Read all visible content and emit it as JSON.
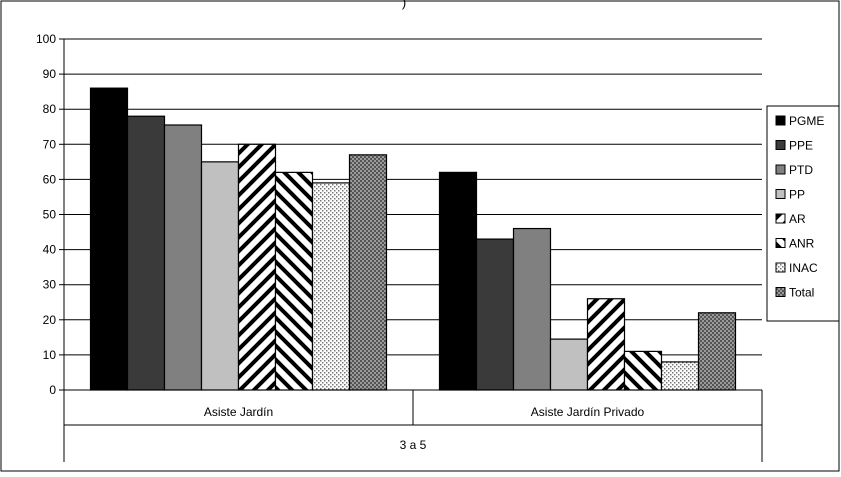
{
  "chart_data": {
    "type": "bar",
    "title_fragment": ")",
    "group_label": "3 a 5",
    "categories": [
      "Asiste Jardín",
      "Asiste Jardín Privado"
    ],
    "ylim": [
      0,
      100
    ],
    "yticks": [
      0,
      10,
      20,
      30,
      40,
      50,
      60,
      70,
      80,
      90,
      100
    ],
    "grid": true,
    "legend_position": "right",
    "series": [
      {
        "name": "PGME",
        "values": [
          86,
          62
        ],
        "fill": "solid",
        "color": "#000000"
      },
      {
        "name": "PPE",
        "values": [
          78,
          43
        ],
        "fill": "solid",
        "color": "#3a3a3a"
      },
      {
        "name": "PTD",
        "values": [
          75.5,
          46
        ],
        "fill": "solid",
        "color": "#808080"
      },
      {
        "name": "PP",
        "values": [
          65,
          14.5
        ],
        "fill": "solid",
        "color": "#c0c0c0"
      },
      {
        "name": "AR",
        "values": [
          70,
          26
        ],
        "fill": "stripes-up",
        "color": "#000000"
      },
      {
        "name": "ANR",
        "values": [
          62,
          11
        ],
        "fill": "stripes-down",
        "color": "#000000"
      },
      {
        "name": "INAC",
        "values": [
          59,
          8
        ],
        "fill": "dots",
        "color": "#888888"
      },
      {
        "name": "Total",
        "values": [
          67,
          22
        ],
        "fill": "checker",
        "color": "#666666"
      }
    ]
  }
}
